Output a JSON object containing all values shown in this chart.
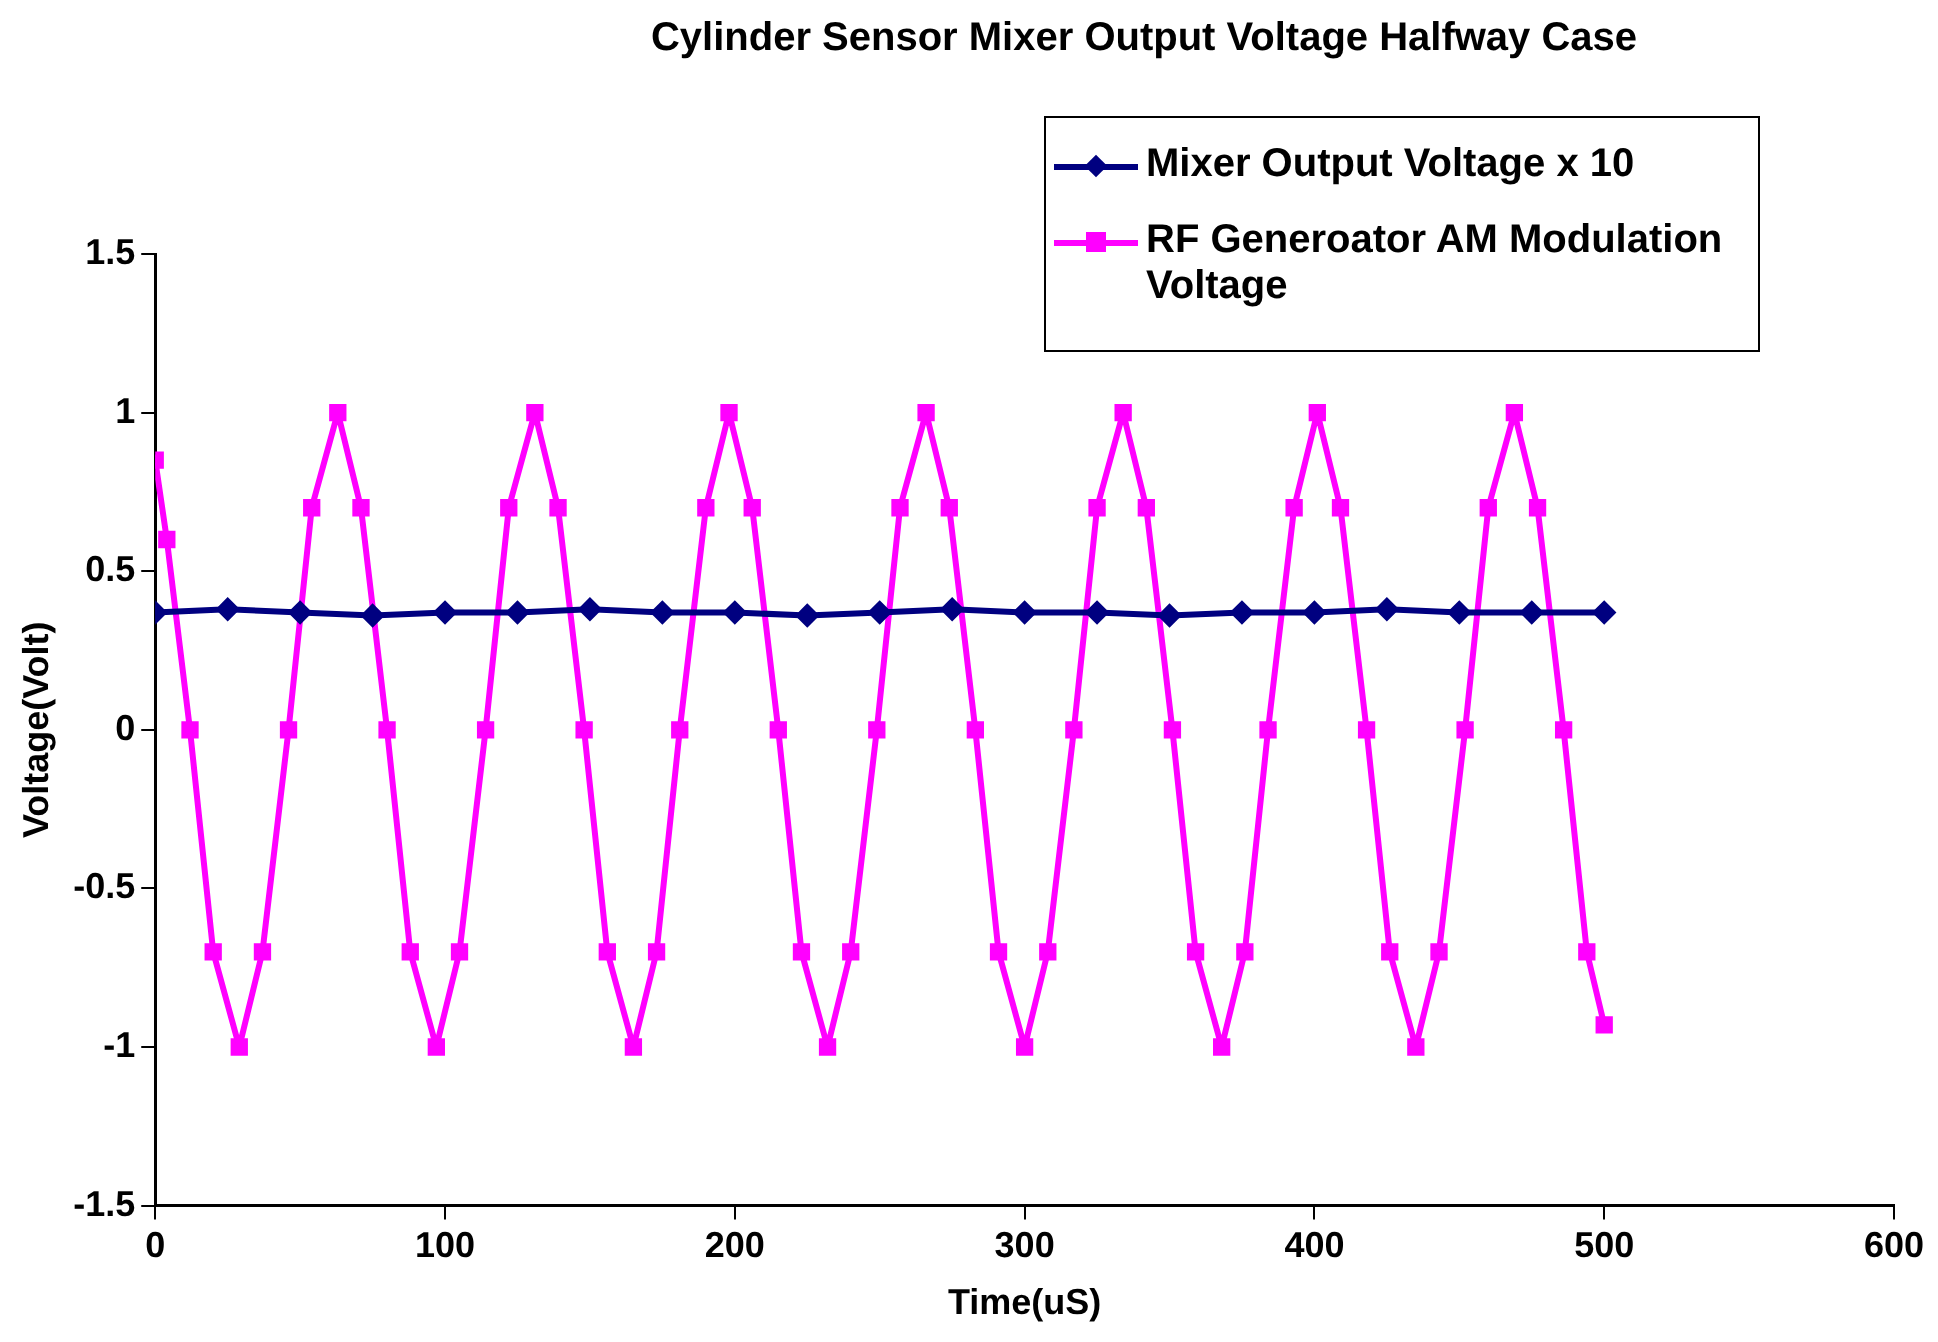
{
  "chart_data": {
    "type": "line",
    "title": "Cylinder Sensor Mixer Output Voltage Halfway Case",
    "xlabel": "Time(uS)",
    "ylabel": "Voltage(Volt)",
    "xlim": [
      0,
      600
    ],
    "xticks": [
      0,
      100,
      200,
      300,
      400,
      500,
      600
    ],
    "ylim": [
      -1.5,
      1.5
    ],
    "yticks": [
      -1.5,
      -1,
      -0.5,
      0,
      0.5,
      1,
      1.5
    ],
    "grid": false,
    "legend": "top right",
    "line_style": "solid",
    "series": [
      {
        "name": "Mixer Output Voltage x 10",
        "color": "#000080",
        "marker": "diamond",
        "x": [
          0,
          25,
          50,
          75,
          100,
          125,
          150,
          175,
          200,
          225,
          250,
          275,
          300,
          325,
          350,
          375,
          400,
          425,
          450,
          475,
          500
        ],
        "values": [
          0.37,
          0.38,
          0.37,
          0.36,
          0.37,
          0.37,
          0.38,
          0.37,
          0.37,
          0.36,
          0.37,
          0.38,
          0.37,
          0.37,
          0.36,
          0.37,
          0.37,
          0.38,
          0.37,
          0.37,
          0.37
        ]
      },
      {
        "name": "RF Generoator AM Modulation Voltage",
        "color": "#ff00ff",
        "marker": "square",
        "x": [
          0,
          4,
          12,
          20,
          29,
          37,
          46,
          54,
          63,
          71,
          80,
          88,
          97,
          105,
          114,
          122,
          131,
          139,
          148,
          156,
          165,
          173,
          181,
          190,
          198,
          206,
          215,
          223,
          232,
          240,
          249,
          257,
          266,
          274,
          283,
          291,
          300,
          308,
          317,
          325,
          334,
          342,
          351,
          359,
          368,
          376,
          384,
          393,
          401,
          409,
          418,
          426,
          435,
          443,
          452,
          460,
          469,
          477,
          486,
          494,
          500
        ],
        "values": [
          0.85,
          0.6,
          0,
          -0.7,
          -1,
          -0.7,
          0,
          0.7,
          1,
          0.7,
          0,
          -0.7,
          -1,
          -0.7,
          0,
          0.7,
          1,
          0.7,
          0,
          -0.7,
          -1,
          -0.7,
          0,
          0.7,
          1,
          0.7,
          0,
          -0.7,
          -1,
          -0.7,
          0,
          0.7,
          1,
          0.7,
          0,
          -0.7,
          -1,
          -0.7,
          0,
          0.7,
          1,
          0.7,
          0,
          -0.7,
          -1,
          -0.7,
          0,
          0.7,
          1,
          0.7,
          0,
          -0.7,
          -1,
          -0.7,
          0,
          0.7,
          1,
          0.7,
          0,
          -0.7,
          -0.93
        ]
      }
    ]
  }
}
